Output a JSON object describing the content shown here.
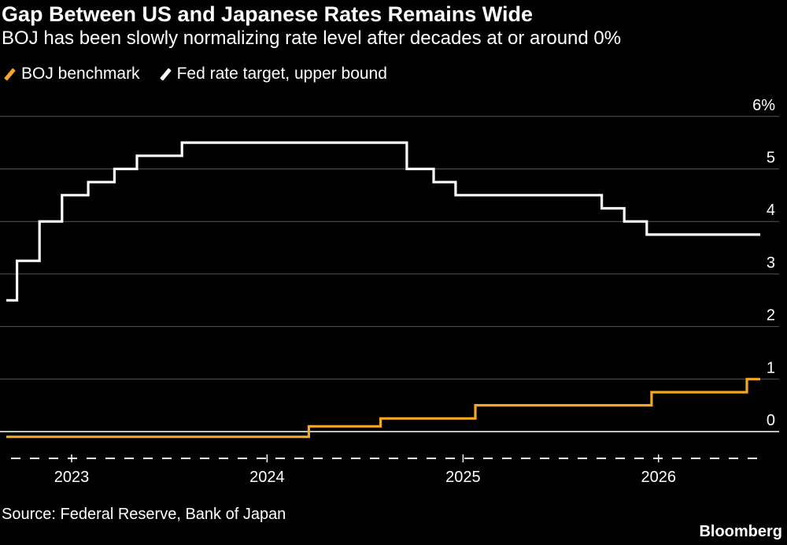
{
  "chart_data": {
    "type": "line",
    "title": "Gap Between US and Japanese Rates Remains Wide",
    "subtitle": "BOJ has been slowly normalizing rate level after decades at or around 0%",
    "source": "Source: Federal Reserve, Bank of Japan",
    "brand": "Bloomberg",
    "ylim": [
      -0.2,
      6
    ],
    "yticks": [
      {
        "value": 6,
        "label": "6%"
      },
      {
        "value": 5,
        "label": "5"
      },
      {
        "value": 4,
        "label": "4"
      },
      {
        "value": 3,
        "label": "3"
      },
      {
        "value": 2,
        "label": "2"
      },
      {
        "value": 1,
        "label": "1"
      },
      {
        "value": 0,
        "label": "0"
      }
    ],
    "xlim": [
      "2022-09-01",
      "2026-07-10"
    ],
    "xticks": [
      {
        "date": "2023-01-01",
        "label": "2023"
      },
      {
        "date": "2024-01-01",
        "label": "2024"
      },
      {
        "date": "2025-01-01",
        "label": "2025"
      },
      {
        "date": "2026-01-01",
        "label": "2026"
      }
    ],
    "grid": true,
    "legend_position": "top-left",
    "series": [
      {
        "name": "BOJ benchmark",
        "color": "#f5a623",
        "step": true,
        "points": [
          {
            "date": "2022-09-01",
            "value": -0.1
          },
          {
            "date": "2024-03-19",
            "value": 0.1
          },
          {
            "date": "2024-07-31",
            "value": 0.25
          },
          {
            "date": "2025-01-24",
            "value": 0.5
          },
          {
            "date": "2025-12-19",
            "value": 0.75
          },
          {
            "date": "2026-06-15",
            "value": 1.0
          },
          {
            "date": "2026-07-10",
            "value": 1.0
          }
        ]
      },
      {
        "name": "Fed rate target, upper bound",
        "color": "#ffffff",
        "step": true,
        "points": [
          {
            "date": "2022-09-01",
            "value": 2.5
          },
          {
            "date": "2022-09-21",
            "value": 3.25
          },
          {
            "date": "2022-11-02",
            "value": 4.0
          },
          {
            "date": "2022-12-14",
            "value": 4.5
          },
          {
            "date": "2023-02-01",
            "value": 4.75
          },
          {
            "date": "2023-03-22",
            "value": 5.0
          },
          {
            "date": "2023-05-03",
            "value": 5.25
          },
          {
            "date": "2023-07-26",
            "value": 5.5
          },
          {
            "date": "2024-09-18",
            "value": 5.0
          },
          {
            "date": "2024-11-07",
            "value": 4.75
          },
          {
            "date": "2024-12-18",
            "value": 4.5
          },
          {
            "date": "2025-09-17",
            "value": 4.25
          },
          {
            "date": "2025-10-29",
            "value": 4.0
          },
          {
            "date": "2025-12-10",
            "value": 3.75
          },
          {
            "date": "2026-07-10",
            "value": 3.75
          }
        ]
      }
    ]
  }
}
